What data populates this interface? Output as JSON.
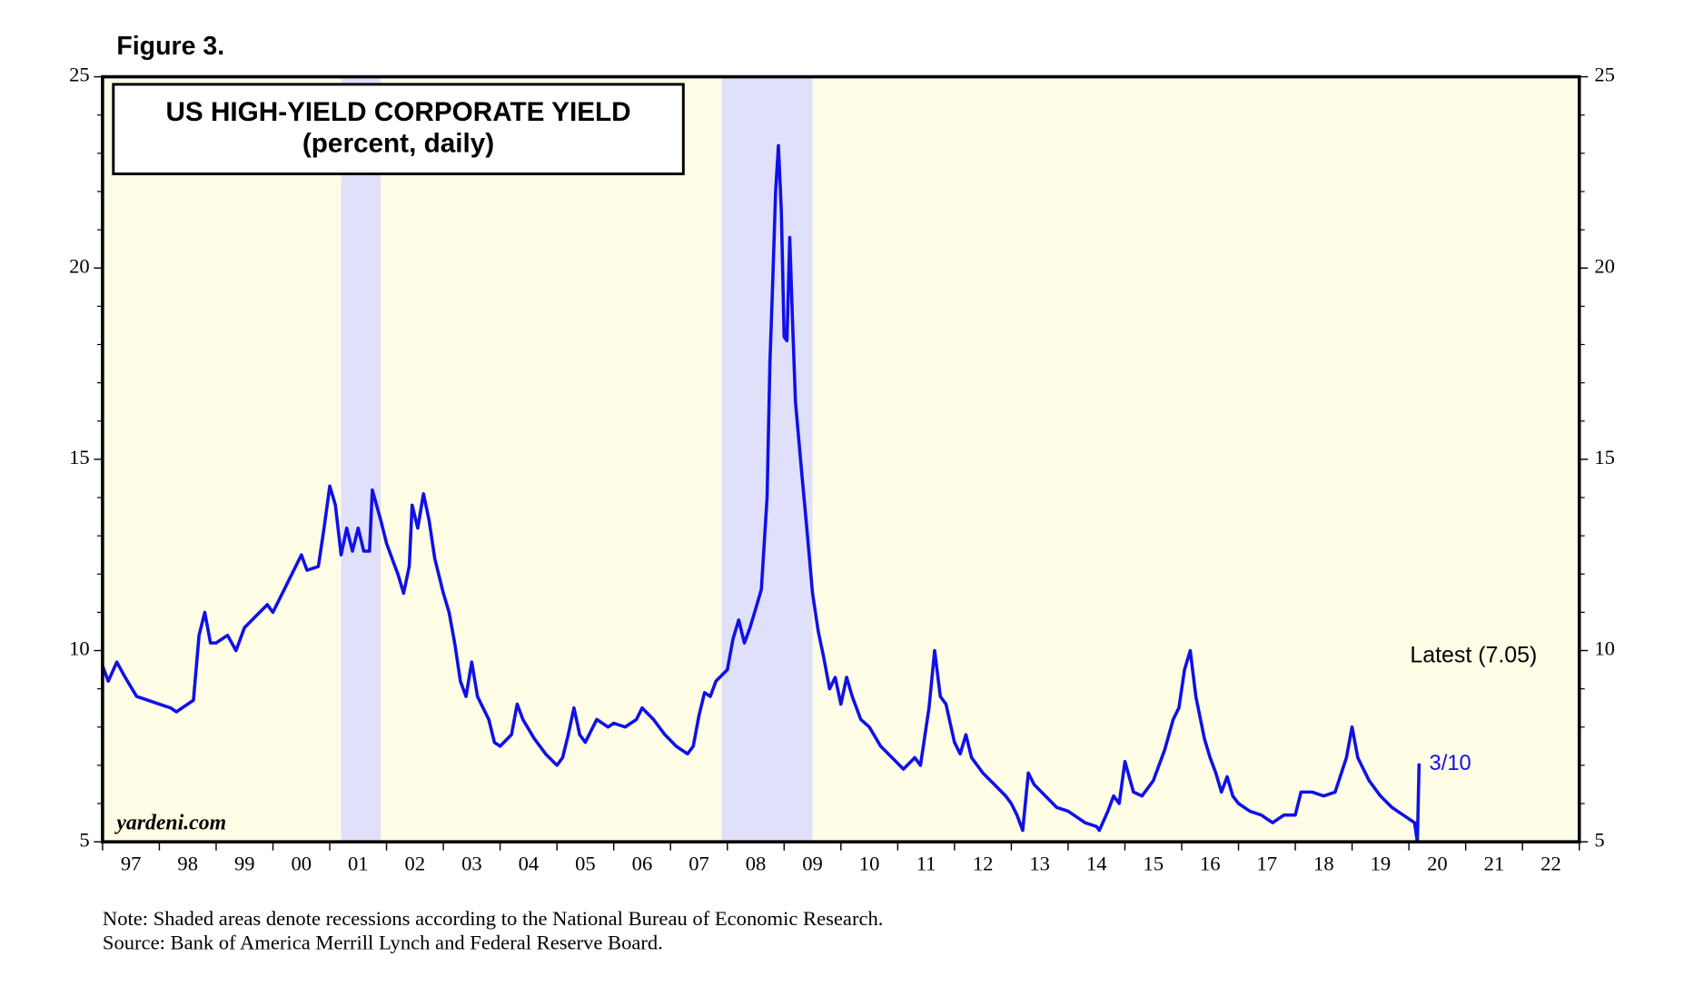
{
  "figure_label": "Figure 3.",
  "chart_data": {
    "type": "line",
    "title": "US HIGH-YIELD CORPORATE YIELD",
    "subtitle": "(percent, daily)",
    "watermark": "yardeni.com",
    "annotations": [
      "Latest (7.05)",
      "3/10"
    ],
    "notes": [
      "Note: Shaded areas denote recessions according to the National Bureau of Economic Research.",
      "Source: Bank of America Merrill Lynch and Federal Reserve Board."
    ],
    "recessions": [
      [
        2001.2,
        2001.9
      ],
      [
        2007.9,
        2009.5
      ]
    ],
    "recession_color": "#e0e0fa",
    "background": "#fffde6",
    "xlim": [
      1997,
      2023
    ],
    "xticks": [
      1997,
      1998,
      1999,
      2000,
      2001,
      2002,
      2003,
      2004,
      2005,
      2006,
      2007,
      2008,
      2009,
      2010,
      2011,
      2012,
      2013,
      2014,
      2015,
      2016,
      2017,
      2018,
      2019,
      2020,
      2021,
      2022,
      2023
    ],
    "year_labels": [
      {
        "value": 1997.5,
        "label": "97"
      },
      {
        "value": 1998.5,
        "label": "98"
      },
      {
        "value": 1999.5,
        "label": "99"
      },
      {
        "value": 2000.5,
        "label": "00"
      },
      {
        "value": 2001.5,
        "label": "01"
      },
      {
        "value": 2002.5,
        "label": "02"
      },
      {
        "value": 2003.5,
        "label": "03"
      },
      {
        "value": 2004.5,
        "label": "04"
      },
      {
        "value": 2005.5,
        "label": "05"
      },
      {
        "value": 2006.5,
        "label": "06"
      },
      {
        "value": 2007.5,
        "label": "07"
      },
      {
        "value": 2008.5,
        "label": "08"
      },
      {
        "value": 2009.5,
        "label": "09"
      },
      {
        "value": 2010.5,
        "label": "10"
      },
      {
        "value": 2011.5,
        "label": "11"
      },
      {
        "value": 2012.5,
        "label": "12"
      },
      {
        "value": 2013.5,
        "label": "13"
      },
      {
        "value": 2014.5,
        "label": "14"
      },
      {
        "value": 2015.5,
        "label": "15"
      },
      {
        "value": 2016.5,
        "label": "16"
      },
      {
        "value": 2017.5,
        "label": "17"
      },
      {
        "value": 2018.5,
        "label": "18"
      },
      {
        "value": 2019.5,
        "label": "19"
      },
      {
        "value": 2020.5,
        "label": "20"
      },
      {
        "value": 2021.5,
        "label": "21"
      },
      {
        "value": 2022.5,
        "label": "22"
      }
    ],
    "ylim": [
      5,
      25
    ],
    "yticks": [
      5,
      10,
      15,
      20,
      25
    ],
    "yminorticks": [
      6,
      7,
      8,
      9,
      11,
      12,
      13,
      14,
      16,
      17,
      18,
      19,
      21,
      22,
      23,
      24
    ],
    "series": [
      {
        "name": "US High-Yield Corporate Yield",
        "color": "#1010e8",
        "x": [
          1997.0,
          1997.1,
          1997.25,
          1997.4,
          1997.6,
          1997.8,
          1998.0,
          1998.2,
          1998.3,
          1998.5,
          1998.6,
          1998.7,
          1998.8,
          1998.9,
          1999.0,
          1999.2,
          1999.35,
          1999.5,
          1999.7,
          1999.9,
          2000.0,
          2000.2,
          2000.4,
          2000.5,
          2000.6,
          2000.8,
          2000.9,
          2001.0,
          2001.1,
          2001.2,
          2001.3,
          2001.4,
          2001.5,
          2001.6,
          2001.7,
          2001.75,
          2001.9,
          2002.0,
          2002.1,
          2002.2,
          2002.3,
          2002.4,
          2002.45,
          2002.55,
          2002.65,
          2002.75,
          2002.85,
          2003.0,
          2003.1,
          2003.2,
          2003.3,
          2003.4,
          2003.5,
          2003.6,
          2003.8,
          2003.9,
          2004.0,
          2004.2,
          2004.3,
          2004.4,
          2004.6,
          2004.8,
          2005.0,
          2005.1,
          2005.2,
          2005.3,
          2005.4,
          2005.5,
          2005.7,
          2005.9,
          2006.0,
          2006.2,
          2006.4,
          2006.5,
          2006.7,
          2006.9,
          2007.1,
          2007.3,
          2007.4,
          2007.5,
          2007.6,
          2007.7,
          2007.8,
          2008.0,
          2008.1,
          2008.2,
          2008.3,
          2008.4,
          2008.5,
          2008.6,
          2008.7,
          2008.75,
          2008.8,
          2008.85,
          2008.9,
          2008.95,
          2009.0,
          2009.05,
          2009.1,
          2009.15,
          2009.2,
          2009.3,
          2009.4,
          2009.5,
          2009.6,
          2009.7,
          2009.8,
          2009.9,
          2010.0,
          2010.1,
          2010.2,
          2010.35,
          2010.5,
          2010.7,
          2010.9,
          2011.1,
          2011.3,
          2011.4,
          2011.55,
          2011.65,
          2011.75,
          2011.85,
          2012.0,
          2012.1,
          2012.2,
          2012.3,
          2012.4,
          2012.5,
          2012.7,
          2012.9,
          2013.0,
          2013.1,
          2013.2,
          2013.3,
          2013.4,
          2013.6,
          2013.8,
          2014.0,
          2014.3,
          2014.5,
          2014.55,
          2014.7,
          2014.8,
          2014.9,
          2015.0,
          2015.15,
          2015.3,
          2015.5,
          2015.7,
          2015.85,
          2015.95,
          2016.05,
          2016.15,
          2016.25,
          2016.4,
          2016.5,
          2016.6,
          2016.7,
          2016.8,
          2016.9,
          2017.0,
          2017.2,
          2017.4,
          2017.6,
          2017.8,
          2018.0,
          2018.1,
          2018.3,
          2018.5,
          2018.7,
          2018.9,
          2019.0,
          2019.1,
          2019.3,
          2019.5,
          2019.7,
          2019.9,
          2020.1,
          2020.15,
          2020.18
        ],
        "values": [
          9.6,
          9.2,
          9.7,
          9.3,
          8.8,
          8.7,
          8.6,
          8.5,
          8.4,
          8.6,
          8.7,
          10.4,
          11.0,
          10.2,
          10.2,
          10.4,
          10.0,
          10.6,
          10.9,
          11.2,
          11.0,
          11.6,
          12.2,
          12.5,
          12.1,
          12.2,
          13.2,
          14.3,
          13.8,
          12.5,
          13.2,
          12.6,
          13.2,
          12.6,
          12.6,
          14.2,
          13.4,
          12.8,
          12.4,
          12.0,
          11.5,
          12.2,
          13.8,
          13.2,
          14.1,
          13.4,
          12.4,
          11.5,
          11.0,
          10.2,
          9.2,
          8.8,
          9.7,
          8.8,
          8.2,
          7.6,
          7.5,
          7.8,
          8.6,
          8.2,
          7.7,
          7.3,
          7.0,
          7.2,
          7.8,
          8.5,
          7.8,
          7.6,
          8.2,
          8.0,
          8.1,
          8.0,
          8.2,
          8.5,
          8.2,
          7.8,
          7.5,
          7.3,
          7.5,
          8.3,
          8.9,
          8.8,
          9.2,
          9.5,
          10.3,
          10.8,
          10.2,
          10.6,
          11.1,
          11.6,
          14.0,
          17.5,
          19.7,
          22.0,
          23.2,
          21.5,
          18.2,
          18.1,
          20.8,
          18.5,
          16.5,
          14.8,
          13.2,
          11.5,
          10.5,
          9.8,
          9.0,
          9.3,
          8.6,
          9.3,
          8.8,
          8.2,
          8.0,
          7.5,
          7.2,
          6.9,
          7.2,
          7.0,
          8.5,
          10.0,
          8.8,
          8.6,
          7.6,
          7.3,
          7.8,
          7.2,
          7.0,
          6.8,
          6.5,
          6.2,
          6.0,
          5.7,
          5.3,
          6.8,
          6.5,
          6.2,
          5.9,
          5.8,
          5.5,
          5.4,
          5.3,
          5.8,
          6.2,
          6.0,
          7.1,
          6.3,
          6.2,
          6.6,
          7.4,
          8.2,
          8.5,
          9.5,
          10.0,
          8.8,
          7.7,
          7.2,
          6.8,
          6.3,
          6.7,
          6.2,
          6.0,
          5.8,
          5.7,
          5.5,
          5.7,
          5.7,
          6.3,
          6.3,
          6.2,
          6.3,
          7.2,
          8.0,
          7.2,
          6.6,
          6.2,
          5.9,
          5.7,
          5.5,
          5.0,
          7.05
        ]
      }
    ]
  }
}
